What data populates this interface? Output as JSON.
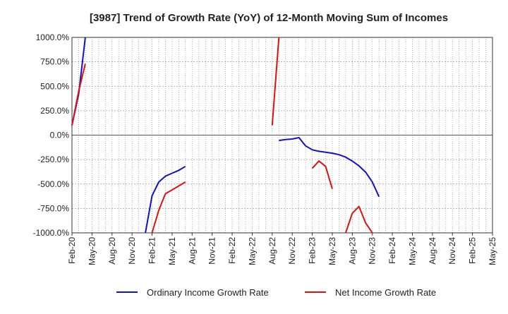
{
  "chart_data": {
    "type": "line",
    "title": "[3987]  Trend of Growth Rate (YoY) of 12-Month Moving Sum of Incomes",
    "xlabel": "",
    "ylabel": "",
    "x_ticks": [
      "Feb-20",
      "May-20",
      "Aug-20",
      "Nov-20",
      "Feb-21",
      "May-21",
      "Aug-21",
      "Nov-21",
      "Feb-22",
      "May-22",
      "Aug-22",
      "Nov-22",
      "Feb-23",
      "May-23",
      "Aug-23",
      "Nov-23",
      "Feb-24",
      "May-24",
      "Aug-24",
      "Nov-24",
      "Feb-25",
      "May-25"
    ],
    "y_ticks": [
      1000,
      750,
      500,
      250,
      0,
      -250,
      -500,
      -750,
      -1000
    ],
    "y_tick_labels": [
      "1000.0%",
      "750.0%",
      "500.0%",
      "250.0%",
      "0.0%",
      "-250.0%",
      "-500.0%",
      "-750.0%",
      "-1000.0%"
    ],
    "ylim": [
      -1000,
      1000
    ],
    "xlim": [
      "Feb-20",
      "May-25"
    ],
    "grid": true,
    "legend_position": "bottom",
    "series": [
      {
        "name": "Ordinary Income Growth Rate",
        "color": "#1111cc",
        "segments": [
          [
            [
              "Feb-20",
              100
            ],
            [
              "Mar-20",
              420
            ],
            [
              "Apr-20",
              1000
            ]
          ],
          [
            [
              "Jan-21",
              -1000
            ],
            [
              "Feb-21",
              -620
            ],
            [
              "Mar-21",
              -480
            ],
            [
              "Apr-21",
              -420
            ],
            [
              "May-21",
              -390
            ],
            [
              "Jun-21",
              -360
            ],
            [
              "Jul-21",
              -320
            ]
          ],
          [
            [
              "Sep-22",
              -55
            ],
            [
              "Oct-22",
              -45
            ],
            [
              "Nov-22",
              -40
            ],
            [
              "Dec-22",
              -25
            ],
            [
              "Jan-23",
              -110
            ],
            [
              "Feb-23",
              -150
            ],
            [
              "Mar-23",
              -165
            ],
            [
              "Apr-23",
              -175
            ],
            [
              "May-23",
              -185
            ],
            [
              "Jun-23",
              -200
            ],
            [
              "Jul-23",
              -225
            ],
            [
              "Aug-23",
              -265
            ],
            [
              "Sep-23",
              -315
            ],
            [
              "Oct-23",
              -380
            ],
            [
              "Nov-23",
              -480
            ],
            [
              "Dec-23",
              -630
            ]
          ]
        ]
      },
      {
        "name": "Net Income Growth Rate",
        "color": "#dd1111",
        "segments": [
          [
            [
              "Feb-20",
              100
            ],
            [
              "Mar-20",
              450
            ],
            [
              "Apr-20",
              730
            ]
          ],
          [
            [
              "Feb-21",
              -1000
            ],
            [
              "Mar-21",
              -770
            ],
            [
              "Apr-21",
              -600
            ],
            [
              "May-21",
              -560
            ],
            [
              "Jun-21",
              -520
            ],
            [
              "Jul-21",
              -480
            ]
          ],
          [
            [
              "Aug-22",
              100
            ],
            [
              "Sep-22",
              1000
            ]
          ],
          [
            [
              "Feb-23",
              -340
            ],
            [
              "Mar-23",
              -265
            ],
            [
              "Apr-23",
              -320
            ],
            [
              "May-23",
              -550
            ]
          ],
          [
            [
              "Jul-23",
              -1000
            ],
            [
              "Aug-23",
              -800
            ],
            [
              "Sep-23",
              -730
            ],
            [
              "Oct-23",
              -900
            ],
            [
              "Nov-23",
              -1000
            ]
          ]
        ]
      }
    ]
  }
}
